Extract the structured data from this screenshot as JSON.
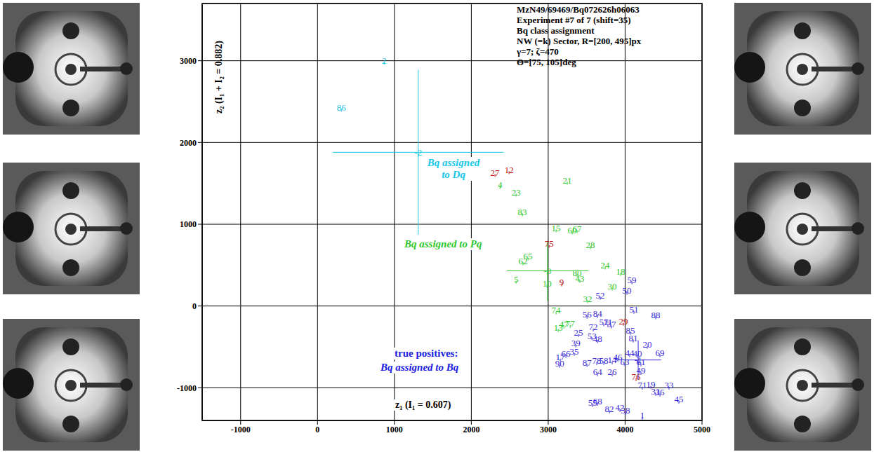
{
  "chart_data": {
    "type": "scatter",
    "title": [
      "MzN49/69469/Bq072626h06063",
      "Experiment #7 of 7 (shift=35)",
      "Bq class assignment",
      "NW (=k) Sector, R=[200, 495]px",
      "γ=7; ζ=470",
      "Θ=[75, 105]deg"
    ],
    "x_label": "z₁  (I₁ = 0.607)",
    "y_label": "z₂  (I₁ + I₂ = 0.882)",
    "xlim": [
      -1500,
      5000
    ],
    "ylim": [
      -1400,
      3700
    ],
    "xticks": [
      -1000,
      0,
      1000,
      2000,
      3000,
      4000,
      5000
    ],
    "yticks": [
      -1000,
      0,
      1000,
      2000,
      3000
    ],
    "grid": true,
    "marker": "label",
    "annotations": [
      {
        "text": "Bq assigned to Dq",
        "color": "#18c8e8"
      },
      {
        "text": "Bq assigned to Pq",
        "color": "#2ec82e"
      },
      {
        "text": "true positives:",
        "color": "#2020e0"
      },
      {
        "text": "Bq assigned to Bq",
        "color": "#2020e0"
      }
    ],
    "series": [
      {
        "color": "#18c8e8",
        "x": [
          867,
          310
        ],
        "y": [
          3004,
          2429
        ],
        "labels": [
          "2",
          "86"
        ]
      },
      {
        "color": "#b81010",
        "x": [
          2308,
          2491,
          3011,
          3175,
          3978,
          4142
        ],
        "y": [
          1631,
          1665,
          764,
          292,
          -189,
          -867
        ],
        "labels": [
          "27",
          "12",
          "75",
          "9",
          "29",
          "76"
        ]
      },
      {
        "color": "#2ec82e",
        "x": [
          2372,
          3248,
          2582,
          2664,
          3102,
          3312,
          3376,
          3549,
          2737,
          2673,
          3741,
          3942,
          3376,
          3412,
          2582,
          2984,
          3832,
          3513,
          3102,
          3130,
          3203,
          3285
        ],
        "y": [
          1485,
          1536,
          1391,
          1150,
          953,
          927,
          944,
          747,
          609,
          549,
          498,
          421,
          403,
          335,
          326,
          275,
          240,
          86,
          -52,
          -266,
          -223,
          -215
        ],
        "labels": [
          "4",
          "21",
          "23",
          "83",
          "15",
          "60",
          "67",
          "28",
          "65",
          "62",
          "24",
          "18",
          "80",
          "43",
          "5",
          "10",
          "30",
          "32",
          "74",
          "13",
          "47",
          "77"
        ]
      },
      {
        "color": "#3a2ad8",
        "x": [
          4088,
          4024,
          3677,
          4115,
          4398,
          3504,
          3641,
          3723,
          3586,
          3823,
          3777,
          4069,
          4106,
          4288,
          3394,
          3568,
          3641,
          3358,
          4453,
          4161,
          4060,
          3157,
          3230,
          3339,
          3148,
          3504,
          3631,
          3723,
          3832,
          3905,
          3996,
          4206,
          3641,
          3832,
          4206,
          4224,
          4334,
          4398,
          4453,
          4571,
          4699,
          4224,
          3641,
          3577,
          3796,
          3933,
          4005
        ],
        "y": [
          318,
          189,
          129,
          -43,
          -112,
          -103,
          -94,
          -197,
          -258,
          -223,
          -197,
          -300,
          -395,
          -472,
          -326,
          -369,
          -403,
          -455,
          -575,
          -584,
          -575,
          -627,
          -584,
          -558,
          -704,
          -695,
          -670,
          -670,
          -661,
          -627,
          -687,
          -687,
          -807,
          -807,
          -790,
          -970,
          -961,
          -1047,
          -1056,
          -970,
          -1142,
          -1339,
          -1167,
          -1185,
          -1262,
          -1245,
          -1279
        ],
        "labels": [
          "59",
          "50",
          "52",
          "51",
          "88",
          "56",
          "84",
          "57",
          "72",
          "37",
          "11",
          "85",
          "81",
          "20",
          "25",
          "53",
          "48",
          "39",
          "69",
          "40",
          "44",
          "17",
          "66",
          "35",
          "90",
          "87",
          "78",
          "58",
          "14",
          "46",
          "63",
          "61",
          "64",
          "26",
          "49",
          "71",
          "19",
          "31",
          "36",
          "33",
          "45",
          "1",
          "68",
          "55",
          "82",
          "42",
          "38"
        ]
      }
    ],
    "crosshairs": [
      {
        "label": "-2",
        "color": "#18c8e8",
        "x": 1310,
        "y": 1880,
        "x_range": [
          200,
          2420
        ],
        "y_range": [
          870,
          2890
        ]
      },
      {
        "label": "-3",
        "color": "#2ec82e",
        "x": 2990,
        "y": 430,
        "x_range": [
          2463,
          3522
        ],
        "y_range": [
          60,
          798
        ]
      },
      {
        "label": "-1",
        "color": "#3a2ad8",
        "x": 4170,
        "y": -660,
        "x_range": [
          3870,
          4470
        ],
        "y_range": [
          -900,
          -420
        ]
      }
    ]
  }
}
